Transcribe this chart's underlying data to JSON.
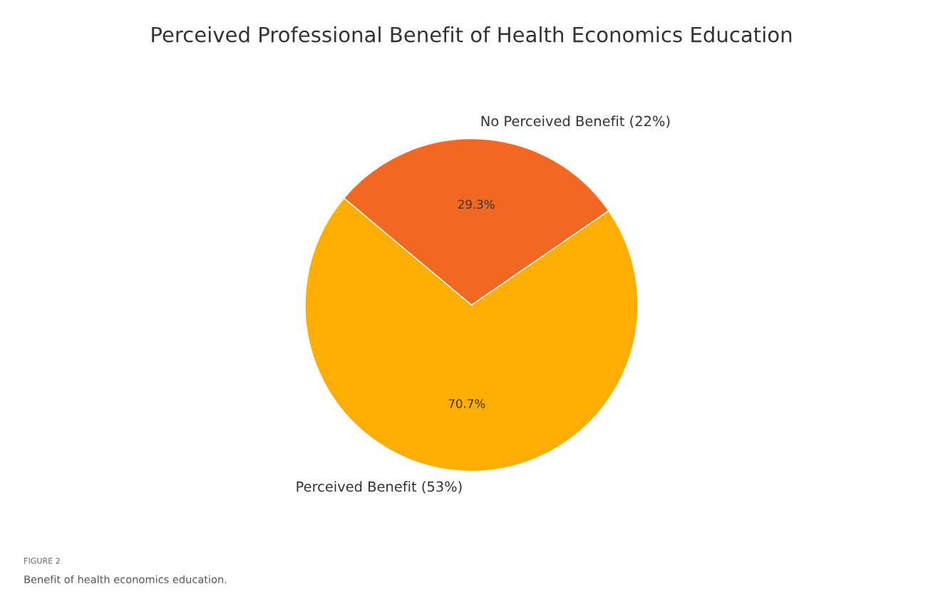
{
  "chart_data": {
    "type": "pie",
    "title": "Perceived Professional Benefit of Health Economics Education",
    "categories": [
      "Perceived Benefit (53%)",
      "No Perceived Benefit (22%)"
    ],
    "values": [
      70.7,
      29.3
    ],
    "value_labels": [
      "70.7%",
      "29.3%"
    ],
    "colors": [
      "#ffae00",
      "#f26822"
    ],
    "annotations": [
      "FIGURE 2",
      "Benefit of health economics education."
    ]
  }
}
